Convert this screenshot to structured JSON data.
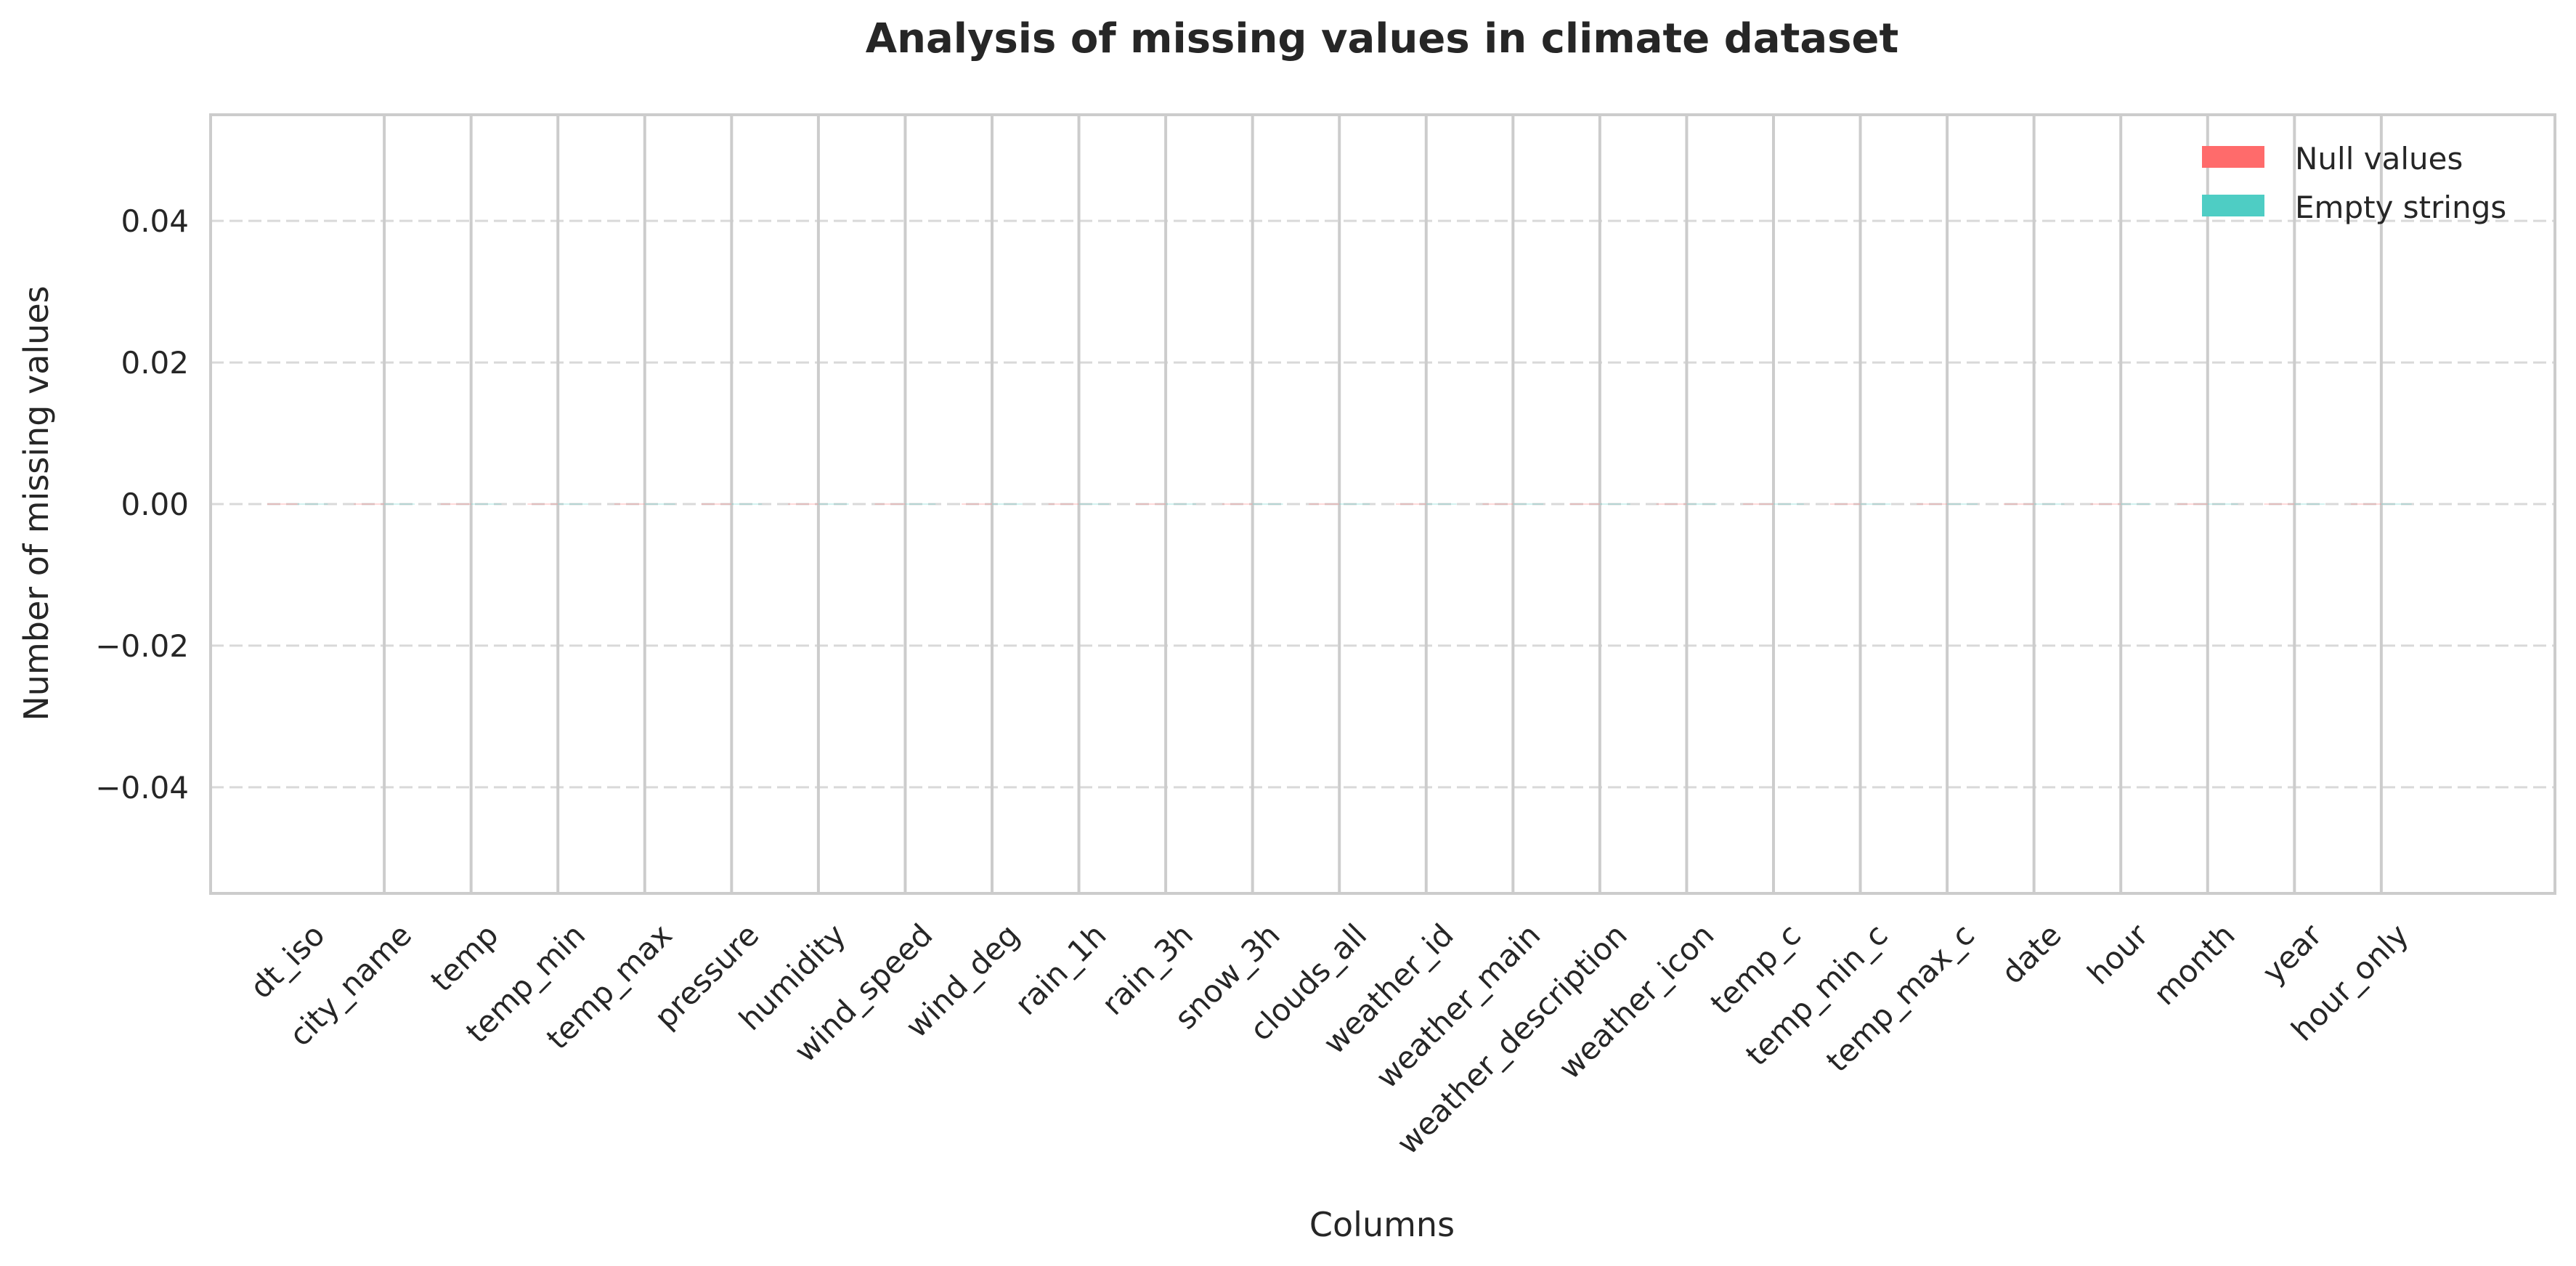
{
  "chart_data": {
    "type": "bar",
    "title": "Analysis of missing values in climate dataset",
    "xlabel": "Columns",
    "ylabel": "Number of missing values",
    "categories": [
      "dt_iso",
      "city_name",
      "temp",
      "temp_min",
      "temp_max",
      "pressure",
      "humidity",
      "wind_speed",
      "wind_deg",
      "rain_1h",
      "rain_3h",
      "snow_3h",
      "clouds_all",
      "weather_id",
      "weather_main",
      "weather_description",
      "weather_icon",
      "temp_c",
      "temp_min_c",
      "temp_max_c",
      "date",
      "hour",
      "month",
      "year",
      "hour_only"
    ],
    "series": [
      {
        "name": "Null values",
        "color": "#ff6b6b",
        "values": [
          0,
          0,
          0,
          0,
          0,
          0,
          0,
          0,
          0,
          0,
          0,
          0,
          0,
          0,
          0,
          0,
          0,
          0,
          0,
          0,
          0,
          0,
          0,
          0,
          0
        ]
      },
      {
        "name": "Empty strings",
        "color": "#4ecdc4",
        "values": [
          0,
          0,
          0,
          0,
          0,
          0,
          0,
          0,
          0,
          0,
          0,
          0,
          0,
          0,
          0,
          0,
          0,
          0,
          0,
          0,
          0,
          0,
          0,
          0,
          0
        ]
      }
    ],
    "ylim": [
      -0.055,
      0.055
    ],
    "yticks": [
      -0.04,
      -0.02,
      0.0,
      0.02,
      0.04
    ],
    "ytick_labels": [
      "−0.04",
      "−0.02",
      "0.00",
      "0.02",
      "0.04"
    ],
    "grid": true,
    "legend_position": "top-right"
  }
}
